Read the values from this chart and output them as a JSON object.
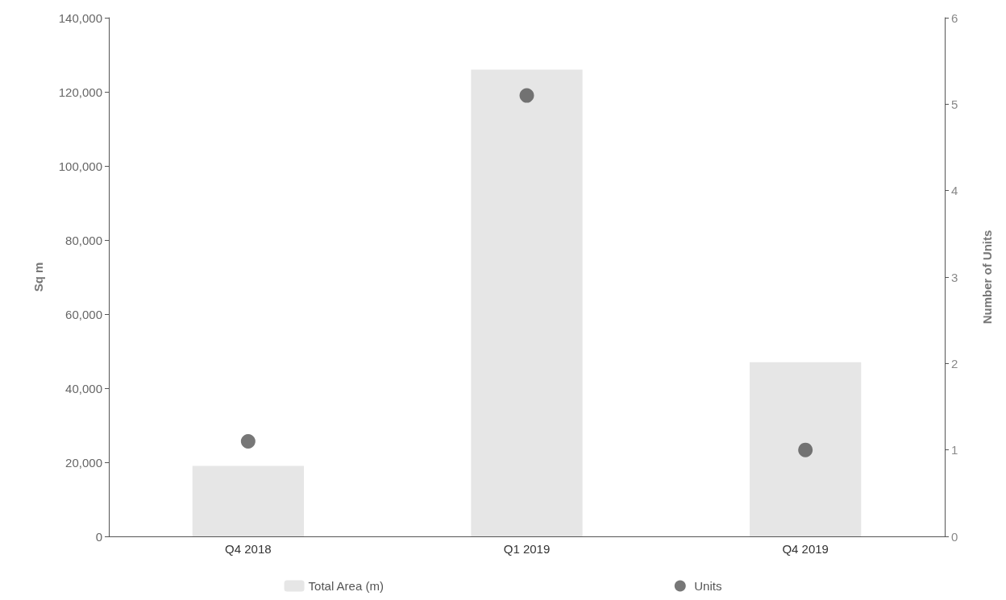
{
  "chart_data": {
    "type": "bar",
    "ylabel": "Sq m",
    "y2label": "Number of Units",
    "categories": [
      "Q4 2018",
      "Q1 2019",
      "Q4 2019"
    ],
    "series": [
      {
        "name": "Total Area (m)",
        "color": "#e6e6e6",
        "values": [
          19000,
          126000,
          47000
        ]
      },
      {
        "name": "Units",
        "type": "scatter",
        "axis": "y2",
        "color": "#555555",
        "values": [
          1.1,
          5.1,
          1
        ]
      }
    ],
    "ylim": [
      0,
      140000
    ],
    "yticks": [
      0,
      {
        "value": 20000,
        "label": "20,000"
      },
      {
        "value": 40000,
        "label": "40,000"
      },
      {
        "value": 60000,
        "label": "60,000"
      },
      {
        "value": 80000,
        "label": "80,000"
      },
      {
        "value": 100000,
        "label": "100,000"
      },
      {
        "value": 120000,
        "label": "120,000"
      },
      {
        "value": 140000,
        "label": "140,000"
      }
    ],
    "y2lim": [
      0,
      6
    ],
    "y2ticks": [
      0,
      1,
      2,
      3,
      4,
      5,
      6
    ],
    "grid": false,
    "legend": "bottom",
    "marker": "circle"
  }
}
